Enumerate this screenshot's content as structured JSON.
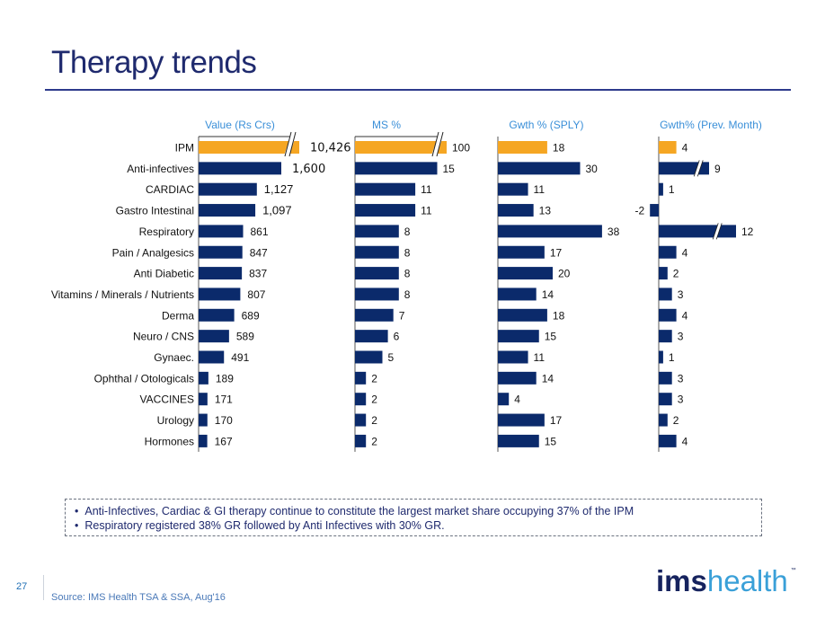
{
  "slide": {
    "title": "Therapy trends",
    "page_number": "27",
    "source": "Source: IMS Health TSA & SSA, Aug'16",
    "logo": {
      "bold": "ims",
      "light": "health",
      "tm": "™"
    },
    "notes": [
      "Anti-Infectives, Cardiac & GI therapy continue to constitute the largest market share occupying 37% of the IPM",
      "Respiratory registered 38% GR followed by Anti Infectives with 30% GR."
    ]
  },
  "colors": {
    "highlight": "#f5a623",
    "bar": "#0b2a6b",
    "header": "#3a8fd8",
    "text": "#111111"
  },
  "chart_data": {
    "type": "bar",
    "orientation": "horizontal",
    "categories": [
      "IPM",
      "Anti-infectives",
      "CARDIAC",
      "Gastro Intestinal",
      "Respiratory",
      "Pain / Analgesics",
      "Anti Diabetic",
      "Vitamins / Minerals / Nutrients",
      "Derma",
      "Neuro / CNS",
      "Gynaec.",
      "Ophthal / Otologicals",
      "VACCINES",
      "Urology",
      "Hormones"
    ],
    "highlight_category": "IPM",
    "series": [
      {
        "name": "Value (Rs Crs)",
        "values": [
          10426,
          1600,
          1127,
          1097,
          861,
          847,
          837,
          807,
          689,
          589,
          491,
          189,
          171,
          170,
          167
        ],
        "labels": [
          "10,426",
          "1,600",
          "1,127",
          "1,097",
          "861",
          "847",
          "837",
          "807",
          "689",
          "589",
          "491",
          "189",
          "171",
          "170",
          "167"
        ],
        "axis_break": [
          "IPM"
        ]
      },
      {
        "name": "MS %",
        "values": [
          100,
          15,
          11,
          11,
          8,
          8,
          8,
          8,
          7,
          6,
          5,
          2,
          2,
          2,
          2
        ],
        "labels": [
          "100",
          "15",
          "11",
          "11",
          "8",
          "8",
          "8",
          "8",
          "7",
          "6",
          "5",
          "2",
          "2",
          "2",
          "2"
        ],
        "axis_break": [
          "IPM"
        ]
      },
      {
        "name": "Gwth % (SPLY)",
        "values": [
          18,
          30,
          11,
          13,
          38,
          17,
          20,
          14,
          18,
          15,
          11,
          14,
          4,
          17,
          15
        ],
        "labels": [
          "18",
          "30",
          "11",
          "13",
          "38",
          "17",
          "20",
          "14",
          "18",
          "15",
          "11",
          "14",
          "4",
          "17",
          "15"
        ],
        "axis_break": []
      },
      {
        "name": "Gwth% (Prev. Month)",
        "values": [
          4,
          9,
          1,
          -2,
          12,
          4,
          2,
          3,
          4,
          3,
          1,
          3,
          3,
          2,
          4
        ],
        "labels": [
          "4",
          "9",
          "1",
          "-2",
          "12",
          "4",
          "2",
          "3",
          "4",
          "3",
          "1",
          "3",
          "3",
          "2",
          "4"
        ],
        "axis_break": [
          "Anti-infectives",
          "Respiratory"
        ]
      }
    ]
  }
}
